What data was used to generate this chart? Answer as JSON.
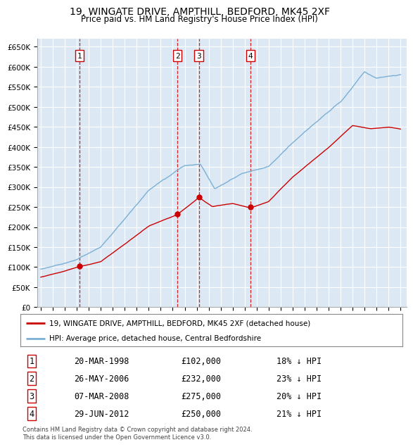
{
  "title": "19, WINGATE DRIVE, AMPTHILL, BEDFORD, MK45 2XF",
  "subtitle": "Price paid vs. HM Land Registry's House Price Index (HPI)",
  "purchases": [
    {
      "label": "1",
      "date_str": "20-MAR-1998",
      "year": 1998.22,
      "price": 102000,
      "pct": "18% ↓ HPI"
    },
    {
      "label": "2",
      "date_str": "26-MAY-2006",
      "year": 2006.4,
      "price": 232000,
      "pct": "23% ↓ HPI"
    },
    {
      "label": "3",
      "date_str": "07-MAR-2008",
      "year": 2008.18,
      "price": 275000,
      "pct": "20% ↓ HPI"
    },
    {
      "label": "4",
      "date_str": "29-JUN-2012",
      "year": 2012.49,
      "price": 250000,
      "pct": "21% ↓ HPI"
    }
  ],
  "hpi_color": "#7bafd4",
  "price_color": "#cc0000",
  "vline_color": "#cc0000",
  "background_color": "#dce9f5",
  "grid_color": "#ffffff",
  "footnote": "Contains HM Land Registry data © Crown copyright and database right 2024.\nThis data is licensed under the Open Government Licence v3.0.",
  "legend_label_price": "19, WINGATE DRIVE, AMPTHILL, BEDFORD, MK45 2XF (detached house)",
  "legend_label_hpi": "HPI: Average price, detached house, Central Bedfordshire",
  "table_rows": [
    [
      "1",
      "20-MAR-1998",
      "£102,000",
      "18% ↓ HPI"
    ],
    [
      "2",
      "26-MAY-2006",
      "£232,000",
      "23% ↓ HPI"
    ],
    [
      "3",
      "07-MAR-2008",
      "£275,000",
      "20% ↓ HPI"
    ],
    [
      "4",
      "29-JUN-2012",
      "£250,000",
      "21% ↓ HPI"
    ]
  ]
}
